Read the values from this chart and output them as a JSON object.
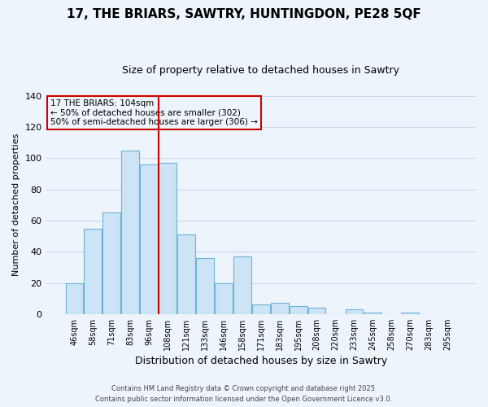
{
  "title": "17, THE BRIARS, SAWTRY, HUNTINGDON, PE28 5QF",
  "subtitle": "Size of property relative to detached houses in Sawtry",
  "xlabel": "Distribution of detached houses by size in Sawtry",
  "ylabel": "Number of detached properties",
  "bar_labels": [
    "46sqm",
    "58sqm",
    "71sqm",
    "83sqm",
    "96sqm",
    "108sqm",
    "121sqm",
    "133sqm",
    "146sqm",
    "158sqm",
    "171sqm",
    "183sqm",
    "195sqm",
    "208sqm",
    "220sqm",
    "233sqm",
    "245sqm",
    "258sqm",
    "270sqm",
    "283sqm",
    "295sqm"
  ],
  "bar_values": [
    20,
    55,
    65,
    105,
    96,
    97,
    51,
    36,
    20,
    37,
    6,
    7,
    5,
    4,
    0,
    3,
    1,
    0,
    1,
    0,
    0
  ],
  "bar_color": "#cce4f5",
  "bar_edge_color": "#6bb3d8",
  "vline_color": "#cc0000",
  "annotation_title": "17 THE BRIARS: 104sqm",
  "annotation_line1": "← 50% of detached houses are smaller (302)",
  "annotation_line2": "50% of semi-detached houses are larger (306) →",
  "ylim": [
    0,
    140
  ],
  "yticks": [
    0,
    20,
    40,
    60,
    80,
    100,
    120,
    140
  ],
  "footer1": "Contains HM Land Registry data © Crown copyright and database right 2025.",
  "footer2": "Contains public sector information licensed under the Open Government Licence v3.0.",
  "background_color": "#eef4fb",
  "grid_color": "#c8d8e8"
}
